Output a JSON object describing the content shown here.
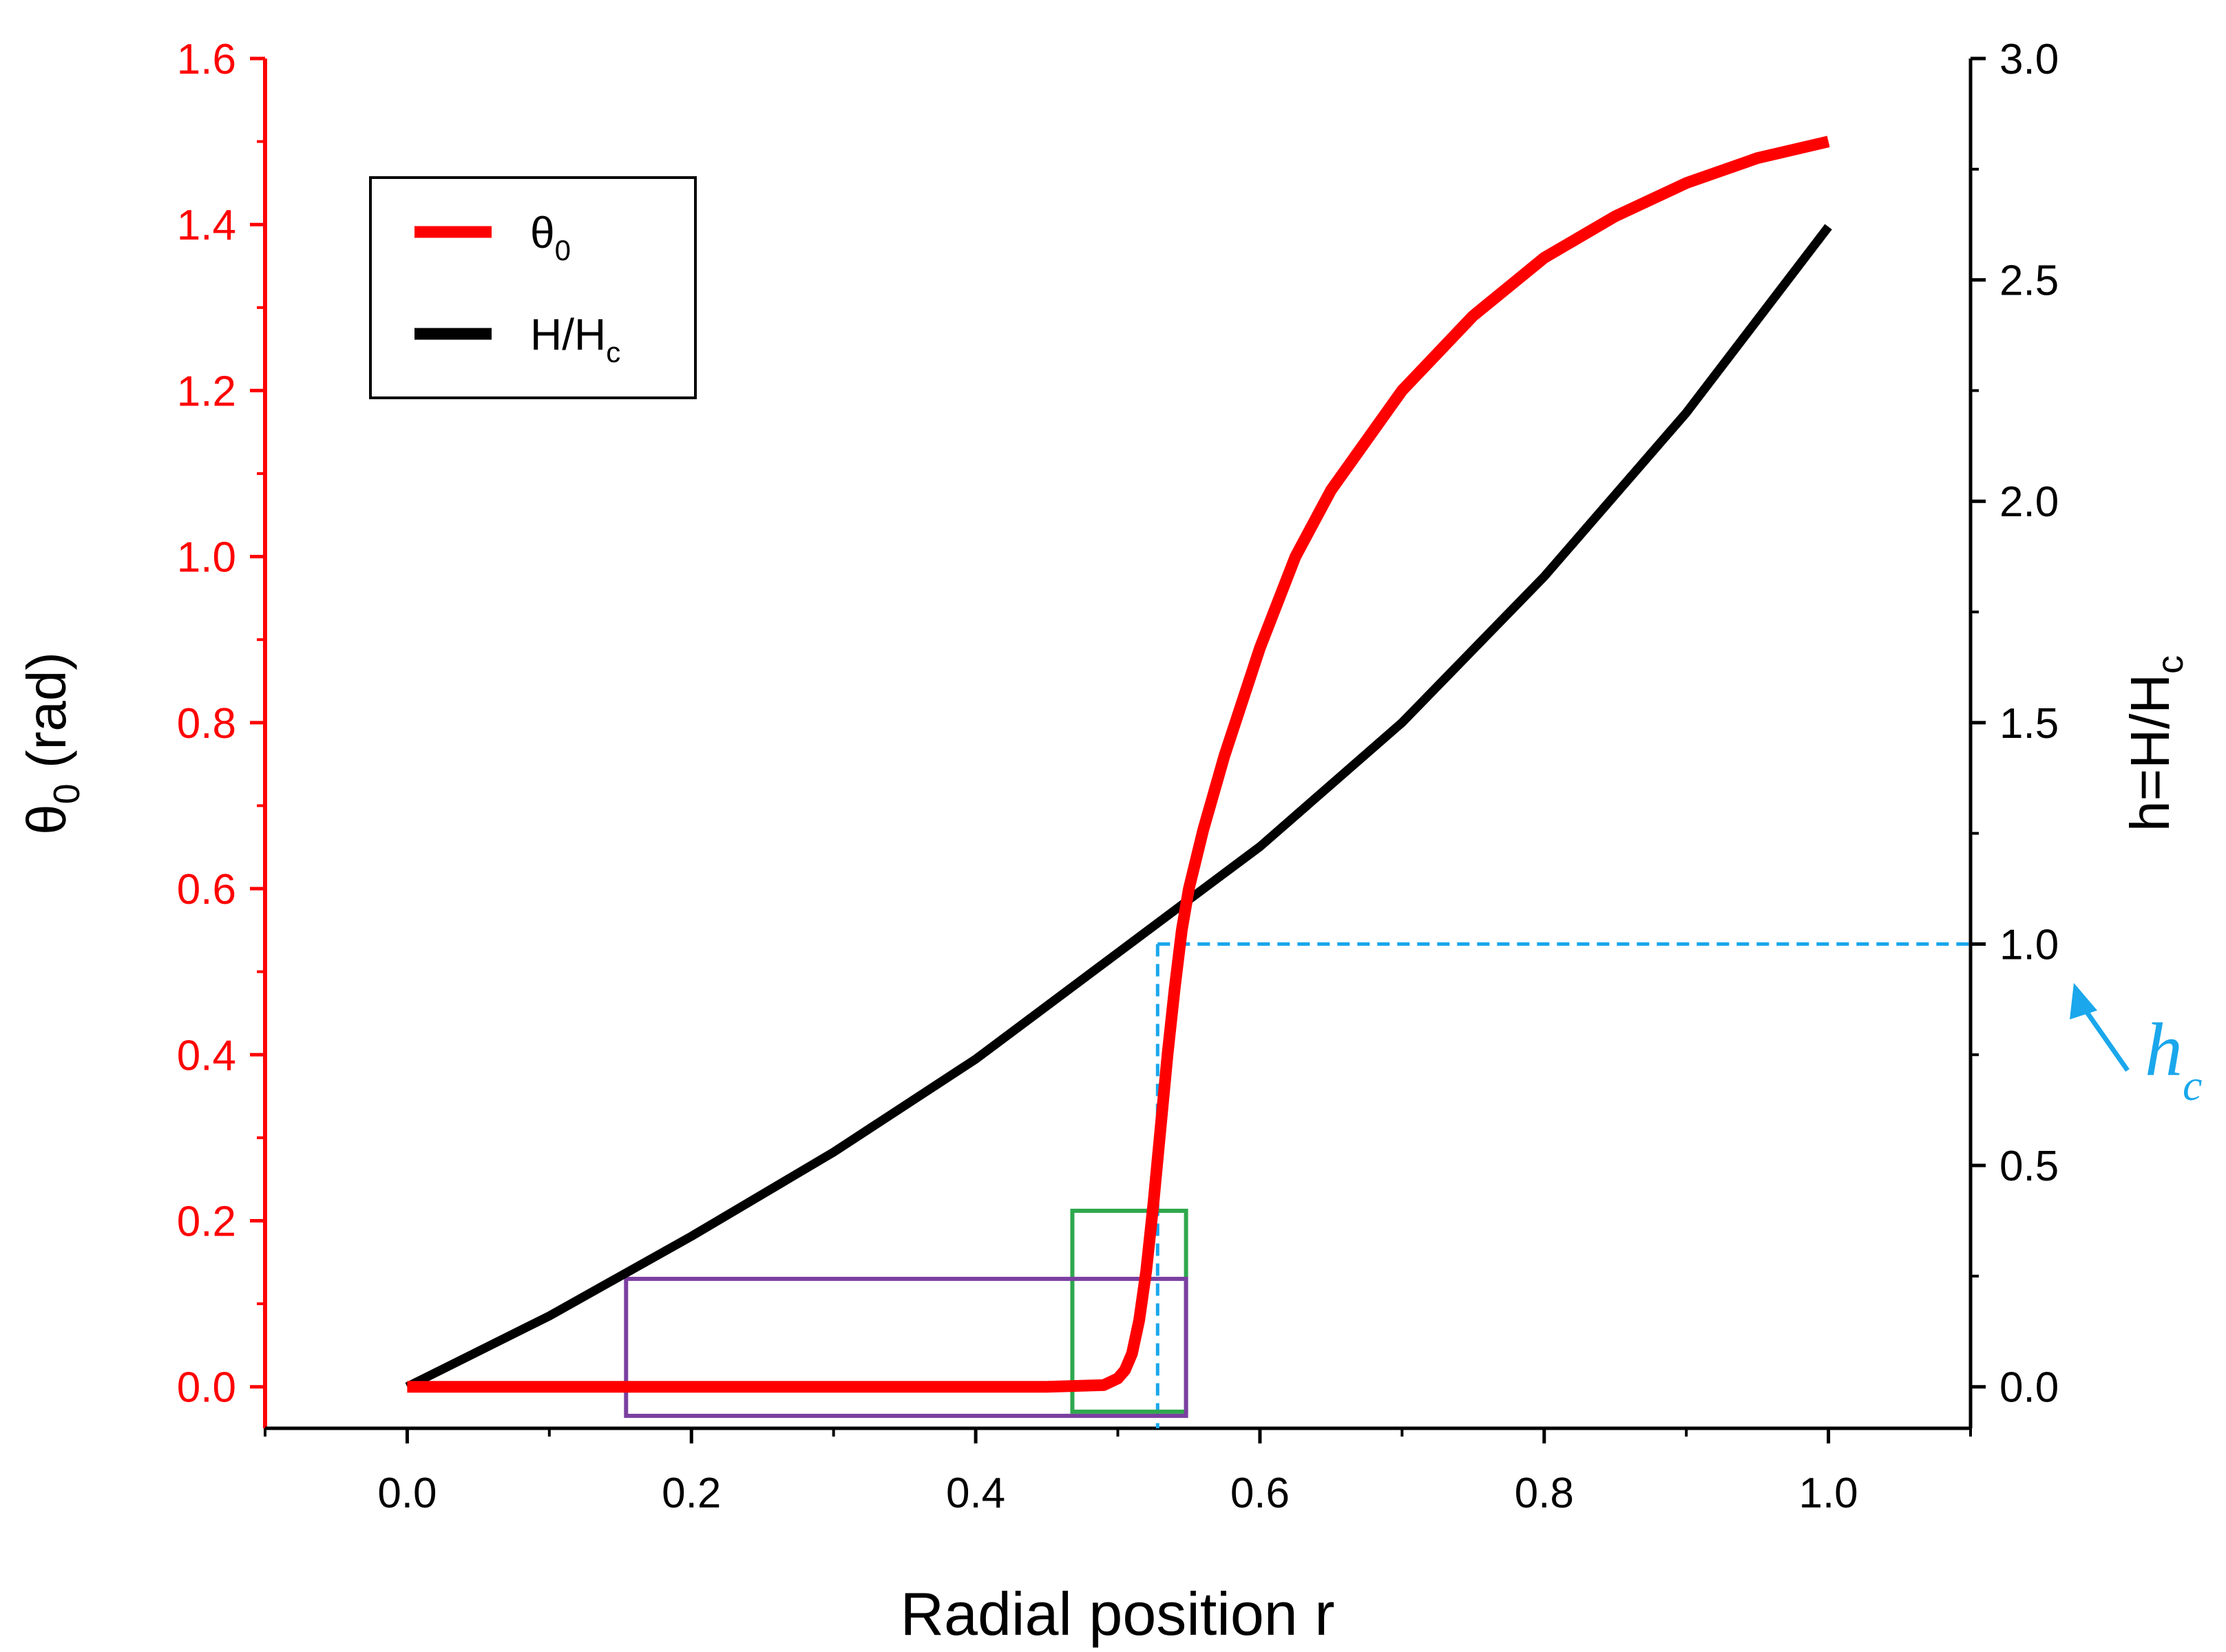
{
  "chart_data": {
    "type": "line",
    "title": "",
    "xlabel": "Radial position r",
    "xlim": [
      -0.1,
      1.1
    ],
    "x_ticks": [
      0.0,
      0.2,
      0.4,
      0.6,
      0.8,
      1.0
    ],
    "x_tick_labels": [
      "0.0",
      "0.2",
      "0.4",
      "0.6",
      "0.8",
      "1.0"
    ],
    "left_axis": {
      "label": "θ0 (rad)",
      "label_main": "θ",
      "label_sub": "0",
      "label_rest": " (rad)",
      "ylim": [
        -0.05,
        1.6
      ],
      "ticks": [
        0.0,
        0.2,
        0.4,
        0.6,
        0.8,
        1.0,
        1.2,
        1.4,
        1.6
      ],
      "tick_labels": [
        "0.0",
        "0.2",
        "0.4",
        "0.6",
        "0.8",
        "1.0",
        "1.2",
        "1.4",
        "1.6"
      ],
      "color": "#ff0000"
    },
    "right_axis": {
      "label": "h=H/Hc",
      "label_main": "h=H/H",
      "label_sub": "c",
      "ylim": [
        -0.09375,
        3.0
      ],
      "ticks": [
        0.0,
        0.5,
        1.0,
        1.5,
        2.0,
        2.5,
        3.0
      ],
      "tick_labels": [
        "0.0",
        "0.5",
        "1.0",
        "1.5",
        "2.0",
        "2.5",
        "3.0"
      ],
      "color": "#000000"
    },
    "series": [
      {
        "name": "θ0",
        "legend_main": "θ",
        "legend_sub": "0",
        "axis": "left",
        "color": "#ff0000",
        "x": [
          0.0,
          0.05,
          0.1,
          0.15,
          0.2,
          0.25,
          0.3,
          0.35,
          0.4,
          0.45,
          0.49,
          0.5,
          0.505,
          0.51,
          0.515,
          0.52,
          0.525,
          0.53,
          0.535,
          0.54,
          0.545,
          0.55,
          0.56,
          0.575,
          0.6,
          0.625,
          0.65,
          0.7,
          0.75,
          0.8,
          0.85,
          0.9,
          0.95,
          1.0
        ],
        "values": [
          0.0,
          0.0,
          0.0,
          0.0,
          0.0,
          0.0,
          0.0,
          0.0,
          0.0,
          0.0,
          0.002,
          0.01,
          0.02,
          0.04,
          0.08,
          0.14,
          0.22,
          0.31,
          0.4,
          0.48,
          0.55,
          0.6,
          0.67,
          0.76,
          0.89,
          1.0,
          1.08,
          1.2,
          1.29,
          1.36,
          1.41,
          1.45,
          1.48,
          1.5
        ]
      },
      {
        "name": "H/Hc",
        "legend_main": "H/H",
        "legend_sub": "c",
        "axis": "right",
        "color": "#000000",
        "x": [
          0.0,
          0.1,
          0.2,
          0.3,
          0.4,
          0.5,
          0.55,
          0.6,
          0.7,
          0.8,
          0.9,
          1.0
        ],
        "values": [
          0.0,
          0.16,
          0.34,
          0.53,
          0.74,
          0.98,
          1.1,
          1.22,
          1.5,
          1.83,
          2.2,
          2.62
        ]
      }
    ],
    "annotations": {
      "critical_field": {
        "label": "hc",
        "label_main": "h",
        "label_sub": "c",
        "x": 0.528,
        "h": 1.0,
        "color": "#1aa7ec"
      },
      "boxes": [
        {
          "name": "green-box",
          "x0": 0.468,
          "x1": 0.548,
          "y0": -0.03,
          "y1": 0.212,
          "color": "#2ea84d"
        },
        {
          "name": "purple-box",
          "x0": 0.154,
          "x1": 0.548,
          "y0": -0.035,
          "y1": 0.13,
          "color": "#7b3fa0"
        }
      ]
    },
    "legend_placement": "top-left",
    "grid": false
  }
}
